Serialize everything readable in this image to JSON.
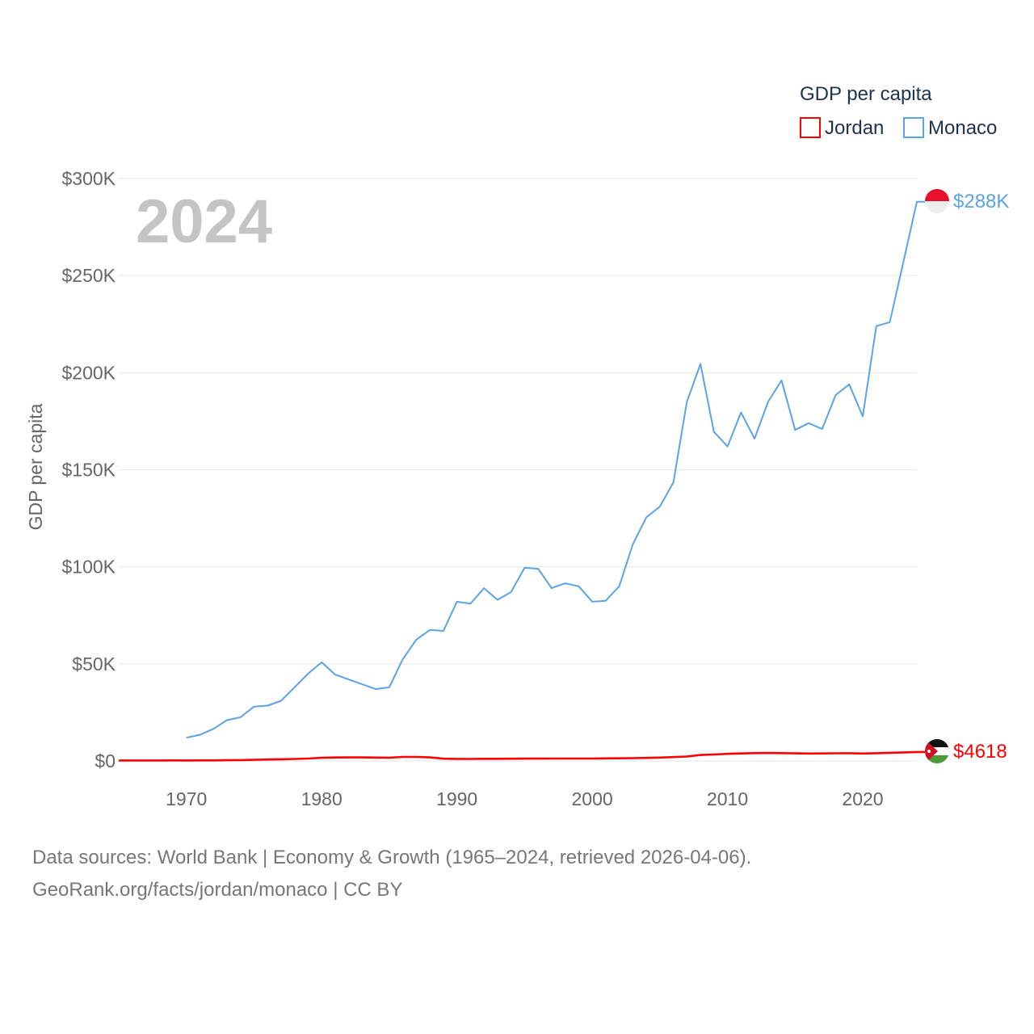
{
  "chart_data": {
    "type": "line",
    "year_label": "2024",
    "ylabel": "GDP per capita",
    "xlim": [
      1965,
      2024
    ],
    "ylim": [
      0,
      300000
    ],
    "x_ticks": [
      1970,
      1980,
      1990,
      2000,
      2010,
      2020
    ],
    "x_tick_labels": [
      "1970",
      "1980",
      "1990",
      "2000",
      "2010",
      "2020"
    ],
    "y_ticks": [
      0,
      50000,
      100000,
      150000,
      200000,
      250000,
      300000
    ],
    "y_tick_labels": [
      "$0",
      "$50K",
      "$100K",
      "$150K",
      "$200K",
      "$250K",
      "$300K"
    ],
    "legend": {
      "title": "GDP per capita",
      "position": "top-right"
    },
    "series": [
      {
        "name": "Jordan",
        "color": "#ff0000",
        "end_label": "$4618",
        "flag": "jordan-flag",
        "x": [
          1965,
          1966,
          1967,
          1968,
          1969,
          1970,
          1971,
          1972,
          1973,
          1974,
          1975,
          1976,
          1977,
          1978,
          1979,
          1980,
          1981,
          1982,
          1983,
          1984,
          1985,
          1986,
          1987,
          1988,
          1989,
          1990,
          1991,
          1992,
          1993,
          1994,
          1995,
          1996,
          1997,
          1998,
          1999,
          2000,
          2001,
          2002,
          2003,
          2004,
          2005,
          2006,
          2007,
          2008,
          2009,
          2010,
          2011,
          2012,
          2013,
          2014,
          2015,
          2016,
          2017,
          2018,
          2019,
          2020,
          2021,
          2022,
          2023,
          2024
        ],
        "values": [
          260,
          270,
          260,
          250,
          280,
          260,
          280,
          310,
          360,
          460,
          580,
          740,
          880,
          1020,
          1250,
          1620,
          1780,
          1850,
          1830,
          1760,
          1720,
          2060,
          2090,
          1840,
          1170,
          1070,
          1040,
          1130,
          1140,
          1160,
          1200,
          1200,
          1230,
          1240,
          1260,
          1250,
          1330,
          1390,
          1460,
          1580,
          1740,
          1990,
          2280,
          3060,
          3320,
          3650,
          3890,
          4050,
          4130,
          4040,
          3900,
          3820,
          3850,
          3960,
          3980,
          3810,
          3990,
          4220,
          4400,
          4618
        ]
      },
      {
        "name": "Monaco",
        "color": "#5ba3e6",
        "end_label": "$288K",
        "flag": "monaco-flag",
        "x": [
          1970,
          1971,
          1972,
          1973,
          1974,
          1975,
          1976,
          1977,
          1978,
          1979,
          1980,
          1981,
          1982,
          1983,
          1984,
          1985,
          1986,
          1987,
          1988,
          1989,
          1990,
          1991,
          1992,
          1993,
          1994,
          1995,
          1996,
          1997,
          1998,
          1999,
          2000,
          2001,
          2002,
          2003,
          2004,
          2005,
          2006,
          2007,
          2008,
          2009,
          2010,
          2011,
          2012,
          2013,
          2014,
          2015,
          2016,
          2017,
          2018,
          2019,
          2020,
          2021,
          2022,
          2023,
          2024
        ],
        "values": [
          12000,
          13500,
          16500,
          21000,
          22500,
          28000,
          28500,
          31000,
          38000,
          45000,
          50800,
          44500,
          42000,
          39500,
          37000,
          38000,
          52500,
          62500,
          67500,
          67000,
          82000,
          81000,
          89000,
          83000,
          87000,
          99500,
          99000,
          89000,
          91500,
          90000,
          82000,
          82500,
          90000,
          111500,
          125500,
          131000,
          143500,
          185000,
          204500,
          169500,
          162000,
          179500,
          166000,
          185000,
          196000,
          170500,
          174000,
          171000,
          188500,
          194000,
          177500,
          224000,
          226000,
          257000,
          288000
        ]
      }
    ]
  },
  "footer": {
    "line1": "Data sources: World Bank | Economy & Growth (1965–2024, retrieved 2026-04-06).",
    "line2": "GeoRank.org/facts/jordan/monaco | CC BY"
  }
}
